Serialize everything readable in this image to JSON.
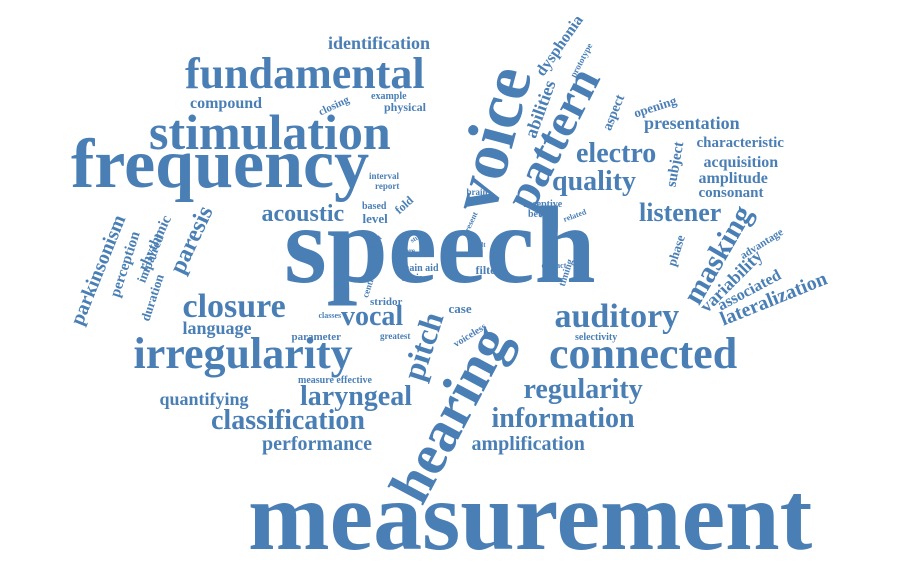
{
  "palette": {
    "word_color": "#4a7fb5",
    "background": "#ffffff"
  },
  "words": [
    "measurement",
    "speech",
    "frequency",
    "voice",
    "hearing",
    "stimulation",
    "fundamental",
    "irregularity",
    "connected",
    "pattern",
    "auditory",
    "laryngeal",
    "information",
    "regularity",
    "classification",
    "closure",
    "listener",
    "quality",
    "electro",
    "masking",
    "paresis",
    "pitch",
    "vocal",
    "acoustic",
    "parkinsonism",
    "amplification",
    "performance",
    "identification",
    "presentation",
    "variability",
    "lateralization",
    "associated",
    "quantifying",
    "language",
    "compound",
    "dysphonia",
    "abilities",
    "characteristic",
    "acquisition",
    "amplitude",
    "consonant",
    "subject",
    "aspect",
    "opening",
    "perception",
    "rhythmic",
    "impaired",
    "duration",
    "phase",
    "advantage",
    "stridor",
    "filter",
    "case",
    "parameter",
    "measure effective",
    "timing",
    "selectivity",
    "voiceless",
    "greatest",
    "classes",
    "central",
    "main aid",
    "basis",
    "level",
    "fold",
    "based",
    "interval",
    "report",
    "closing",
    "example",
    "physical",
    "prototype",
    "brain",
    "receptive",
    "better",
    "related",
    "signal",
    "study",
    "more",
    "adult",
    "contact",
    "present"
  ]
}
